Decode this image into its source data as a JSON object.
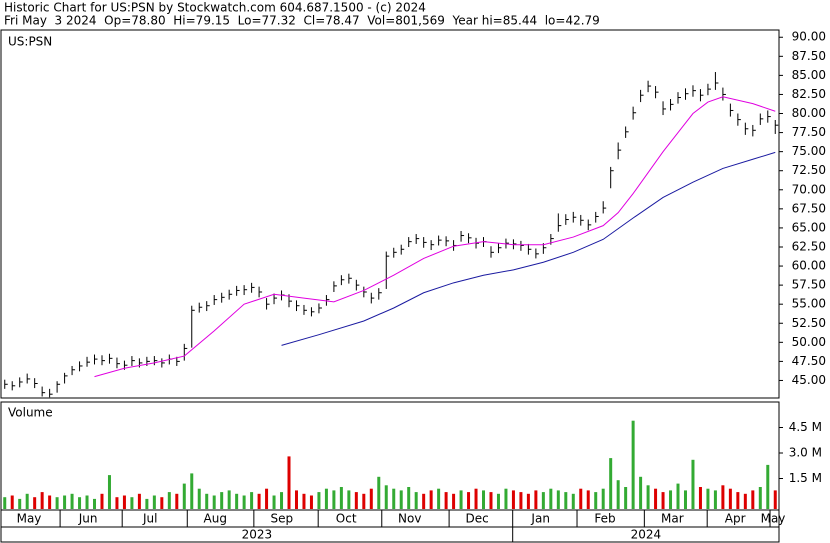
{
  "chart_data": {
    "type": "ohlc",
    "title": "Historic Chart for US:PSN by Stockwatch.com 604.687.1500 - (c) 2024",
    "subtitle": "Fri May  3 2024  Op=78.80  Hi=79.15  Lo=77.32  Cl=78.47  Vol=801,569  Year hi=85.44  lo=42.79",
    "symbol": "US:PSN",
    "volume_label": "Volume",
    "xlim": [
      -0.5,
      103.5
    ],
    "xticks": [
      {
        "value": -0.5,
        "label": "May"
      },
      {
        "value": 7.4,
        "label": "Jun"
      },
      {
        "value": 15.7,
        "label": "Jul"
      },
      {
        "value": 24.4,
        "label": "Aug"
      },
      {
        "value": 33.3,
        "label": "Sep"
      },
      {
        "value": 41.9,
        "label": "Oct"
      },
      {
        "value": 50.4,
        "label": "Nov"
      },
      {
        "value": 59.4,
        "label": "Dec"
      },
      {
        "value": 67.9,
        "label": "Jan"
      },
      {
        "value": 76.5,
        "label": "Feb"
      },
      {
        "value": 85.5,
        "label": "Mar"
      },
      {
        "value": 93.9,
        "label": "Apr"
      },
      {
        "value": 102.3,
        "label": "May"
      }
    ],
    "years": [
      "2023",
      "2024"
    ],
    "ylim": [
      42.7,
      90.95
    ],
    "yticks": [
      {
        "value": 45,
        "label": "45.00"
      },
      {
        "value": 47.5,
        "label": "47.50"
      },
      {
        "value": 50,
        "label": "50.00"
      },
      {
        "value": 52.5,
        "label": "52.50"
      },
      {
        "value": 55,
        "label": "55.00"
      },
      {
        "value": 57.5,
        "label": "57.50"
      },
      {
        "value": 60,
        "label": "60.00"
      },
      {
        "value": 62.5,
        "label": "62.50"
      },
      {
        "value": 65,
        "label": "65.00"
      },
      {
        "value": 67.5,
        "label": "67.50"
      },
      {
        "value": 70,
        "label": "70.00"
      },
      {
        "value": 72.5,
        "label": "72.50"
      },
      {
        "value": 75,
        "label": "75.00"
      },
      {
        "value": 77.5,
        "label": "77.50"
      },
      {
        "value": 80,
        "label": "80.00"
      },
      {
        "value": 82.5,
        "label": "82.50"
      },
      {
        "value": 85,
        "label": "85.00"
      },
      {
        "value": 87.5,
        "label": "87.50"
      },
      {
        "value": 90,
        "label": "90.00"
      }
    ],
    "color": "#000000",
    "high": [
      45.1,
      44.9,
      45.4,
      45.9,
      45.3,
      44.2,
      43.9,
      44.9,
      46.0,
      46.9,
      47.5,
      48.1,
      48.4,
      48.3,
      48.5,
      48.0,
      47.6,
      48.2,
      47.9,
      48.1,
      48.2,
      47.9,
      48.4,
      48.1,
      49.8,
      54.8,
      55.2,
      55.4,
      56.2,
      56.5,
      56.9,
      57.4,
      57.5,
      57.8,
      57.3,
      55.8,
      56.4,
      56.8,
      56.3,
      55.5,
      54.9,
      54.6,
      55.1,
      56.2,
      58.0,
      58.8,
      59.0,
      58.2,
      57.3,
      56.5,
      57.1,
      61.9,
      62.4,
      62.8,
      63.8,
      64.2,
      63.8,
      63.4,
      64.0,
      63.9,
      63.4,
      64.6,
      64.3,
      63.7,
      63.8,
      62.6,
      63.0,
      63.6,
      63.5,
      63.3,
      62.9,
      62.3,
      63.0,
      64.2,
      66.9,
      66.8,
      67.1,
      66.7,
      66.1,
      67.1,
      68.5,
      73.0,
      76.2,
      78.3,
      80.9,
      83.1,
      84.3,
      83.6,
      81.6,
      81.9,
      82.8,
      83.3,
      83.7,
      83.2,
      83.9,
      85.44,
      83.4,
      81.3,
      80.0,
      78.8,
      78.5,
      80.0,
      80.4,
      79.15
    ],
    "low": [
      43.9,
      43.7,
      44.1,
      44.6,
      44.0,
      42.9,
      42.79,
      43.4,
      44.6,
      45.7,
      46.2,
      46.8,
      47.1,
      47.0,
      47.2,
      46.6,
      46.4,
      46.9,
      46.7,
      46.9,
      47.0,
      46.7,
      47.1,
      46.9,
      47.6,
      49.3,
      53.9,
      54.1,
      54.9,
      55.2,
      55.6,
      56.1,
      56.2,
      56.5,
      55.9,
      54.3,
      55.0,
      55.5,
      54.6,
      54.1,
      53.6,
      53.4,
      53.8,
      54.8,
      56.6,
      57.5,
      57.7,
      56.8,
      55.9,
      55.1,
      55.6,
      57.0,
      61.1,
      61.5,
      62.5,
      62.9,
      62.4,
      62.1,
      62.7,
      62.6,
      62.0,
      63.2,
      63.0,
      62.3,
      62.5,
      61.1,
      61.7,
      62.3,
      62.2,
      62.0,
      61.5,
      61.0,
      61.6,
      62.8,
      64.5,
      65.4,
      65.7,
      65.3,
      64.7,
      65.7,
      66.9,
      70.2,
      74.0,
      76.8,
      79.2,
      81.5,
      82.8,
      82.0,
      79.8,
      80.4,
      81.3,
      81.8,
      82.2,
      81.6,
      82.4,
      83.1,
      81.7,
      79.6,
      78.4,
      77.2,
      77.0,
      78.5,
      78.8,
      77.32
    ],
    "close": [
      44.5,
      44.3,
      44.8,
      45.2,
      44.6,
      43.4,
      43.2,
      44.5,
      45.6,
      46.4,
      46.9,
      47.4,
      47.8,
      47.6,
      47.9,
      47.2,
      47.0,
      47.6,
      47.3,
      47.5,
      47.6,
      47.3,
      47.8,
      47.5,
      49.2,
      54.2,
      54.6,
      54.8,
      55.6,
      55.9,
      56.3,
      56.8,
      56.9,
      57.2,
      56.6,
      55.0,
      55.8,
      56.2,
      55.4,
      54.8,
      54.2,
      54.0,
      54.5,
      55.6,
      57.4,
      58.2,
      58.4,
      57.5,
      56.6,
      55.8,
      56.5,
      61.3,
      61.8,
      62.2,
      63.2,
      63.6,
      63.1,
      62.8,
      63.4,
      63.3,
      62.7,
      64.0,
      63.7,
      63.0,
      63.2,
      61.8,
      62.4,
      63.0,
      62.9,
      62.7,
      62.2,
      61.6,
      62.4,
      63.6,
      65.3,
      66.1,
      66.4,
      66.0,
      65.4,
      66.5,
      67.6,
      72.5,
      75.2,
      77.6,
      80.1,
      82.4,
      83.6,
      82.8,
      80.6,
      81.2,
      82.1,
      82.6,
      83.0,
      82.4,
      83.2,
      84.0,
      82.5,
      80.4,
      79.2,
      78.0,
      77.8,
      79.3,
      79.6,
      78.47
    ],
    "overlays": [
      {
        "color": "#e000e0",
        "x": [
          12,
          16,
          20,
          24,
          28,
          32,
          36,
          40,
          44,
          48,
          52,
          56,
          60,
          64,
          68,
          72,
          76,
          80,
          82,
          84,
          88,
          92,
          94,
          96,
          100,
          103
        ],
        "values": [
          45.5,
          46.6,
          47.3,
          48.2,
          51.5,
          55.0,
          56.3,
          55.8,
          55.3,
          56.8,
          58.8,
          61.0,
          62.6,
          63.2,
          62.8,
          62.8,
          63.8,
          65.3,
          67.0,
          69.5,
          75.0,
          80.0,
          81.5,
          82.2,
          81.3,
          80.3
        ]
      },
      {
        "color": "#1a1aa0",
        "x": [
          37,
          42,
          48,
          52,
          56,
          60,
          64,
          68,
          72,
          76,
          80,
          84,
          88,
          92,
          96,
          100,
          103
        ],
        "values": [
          49.6,
          51.0,
          52.8,
          54.5,
          56.5,
          57.8,
          58.8,
          59.5,
          60.5,
          61.8,
          63.5,
          66.3,
          69.0,
          71.0,
          72.8,
          74.0,
          74.9
        ]
      }
    ],
    "volume": [
      0.4,
      0.5,
      0.3,
      0.6,
      0.4,
      0.7,
      0.5,
      0.4,
      0.5,
      0.6,
      0.4,
      0.5,
      0.3,
      0.6,
      1.7,
      0.4,
      0.5,
      0.4,
      0.6,
      0.3,
      0.5,
      0.4,
      0.7,
      0.6,
      1.2,
      1.8,
      0.9,
      0.6,
      0.5,
      0.7,
      0.8,
      0.6,
      0.5,
      0.7,
      0.6,
      0.9,
      0.5,
      0.7,
      2.8,
      0.8,
      0.6,
      0.5,
      0.7,
      0.9,
      0.8,
      1.0,
      0.8,
      0.7,
      0.6,
      0.9,
      1.6,
      1.1,
      0.9,
      0.8,
      1.0,
      0.7,
      0.6,
      0.8,
      0.9,
      0.7,
      0.6,
      0.8,
      0.7,
      0.9,
      0.8,
      0.7,
      0.6,
      0.9,
      0.8,
      0.7,
      0.6,
      0.8,
      0.7,
      0.9,
      0.8,
      0.7,
      0.6,
      0.9,
      0.8,
      0.7,
      0.9,
      2.7,
      1.4,
      1.0,
      4.9,
      1.6,
      1.1,
      0.9,
      0.7,
      0.8,
      1.2,
      0.8,
      2.6,
      1.0,
      0.9,
      0.8,
      1.1,
      0.9,
      0.7,
      0.6,
      0.8,
      1.0,
      2.3,
      0.8
    ],
    "volume_ylim": [
      0,
      6
    ],
    "volume_yticks": [
      {
        "value": 1.5,
        "label": "1.5 M"
      },
      {
        "value": 3.0,
        "label": "3.0 M"
      },
      {
        "value": 4.5,
        "label": "4.5 M"
      }
    ],
    "up_color": "#33aa33",
    "down_color": "#dd0000"
  }
}
